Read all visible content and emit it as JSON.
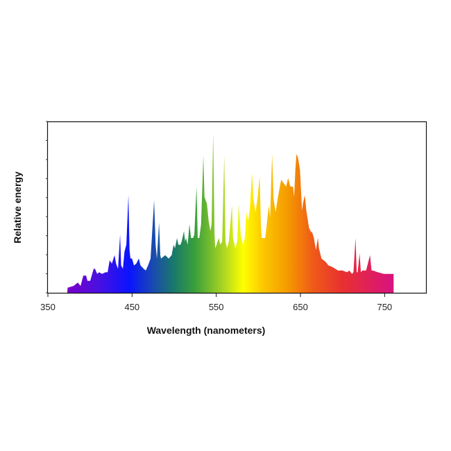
{
  "chart_data": {
    "type": "area",
    "title": "",
    "xlabel": "Wavelength (nanometers)",
    "ylabel": "Relative energy",
    "xlim": [
      350,
      800
    ],
    "ylim": [
      0,
      1
    ],
    "x_ticks": [
      350,
      450,
      550,
      650,
      750
    ],
    "y_tick_count": 10,
    "y_tick_labels": false,
    "grid": false,
    "fill": "visible-spectrum gradient",
    "gradient_stops": [
      {
        "nm": 373,
        "color": "#7a00c8"
      },
      {
        "nm": 410,
        "color": "#4a10e0"
      },
      {
        "nm": 447,
        "color": "#0a14ff"
      },
      {
        "nm": 475,
        "color": "#1a4ab0"
      },
      {
        "nm": 500,
        "color": "#1a7a6a"
      },
      {
        "nm": 525,
        "color": "#3aa03a"
      },
      {
        "nm": 560,
        "color": "#b0d820"
      },
      {
        "nm": 582,
        "color": "#ffff00"
      },
      {
        "nm": 605,
        "color": "#fcc800"
      },
      {
        "nm": 635,
        "color": "#f59a00"
      },
      {
        "nm": 665,
        "color": "#ef5a18"
      },
      {
        "nm": 700,
        "color": "#e83030"
      },
      {
        "nm": 760,
        "color": "#d81280"
      }
    ],
    "points": [
      [
        373,
        0
      ],
      [
        373.5,
        0.03
      ],
      [
        380.5,
        0.04
      ],
      [
        385.5,
        0.06
      ],
      [
        388.8,
        0.04
      ],
      [
        392.1,
        0.1
      ],
      [
        395.4,
        0.1
      ],
      [
        397,
        0.07
      ],
      [
        400.3,
        0.07
      ],
      [
        404.4,
        0.14
      ],
      [
        406,
        0.14
      ],
      [
        408.6,
        0.11
      ],
      [
        411,
        0.12
      ],
      [
        414.3,
        0.11
      ],
      [
        418.5,
        0.12
      ],
      [
        421,
        0.12
      ],
      [
        423.4,
        0.19
      ],
      [
        426,
        0.17
      ],
      [
        429.2,
        0.22
      ],
      [
        431,
        0.17
      ],
      [
        433.3,
        0.14
      ],
      [
        435.8,
        0.34
      ],
      [
        437,
        0.16
      ],
      [
        439.1,
        0.14
      ],
      [
        441,
        0.24
      ],
      [
        443.2,
        0.28
      ],
      [
        445.7,
        0.57
      ],
      [
        447,
        0.25
      ],
      [
        448.1,
        0.2
      ],
      [
        450,
        0.2
      ],
      [
        452.3,
        0.16
      ],
      [
        455,
        0.17
      ],
      [
        458,
        0.2
      ],
      [
        460,
        0.16
      ],
      [
        463.8,
        0.14
      ],
      [
        466.3,
        0.13
      ],
      [
        469,
        0.16
      ],
      [
        472,
        0.2
      ],
      [
        476.2,
        0.54
      ],
      [
        478,
        0.28
      ],
      [
        479.5,
        0.2
      ],
      [
        482,
        0.41
      ],
      [
        483.5,
        0.22
      ],
      [
        484.4,
        0.2
      ],
      [
        487,
        0.21
      ],
      [
        489.4,
        0.22
      ],
      [
        493.5,
        0.2
      ],
      [
        497,
        0.22
      ],
      [
        499.3,
        0.28
      ],
      [
        501,
        0.26
      ],
      [
        503.4,
        0.32
      ],
      [
        505,
        0.28
      ],
      [
        507.5,
        0.28
      ],
      [
        509,
        0.3
      ],
      [
        511.6,
        0.36
      ],
      [
        513,
        0.3
      ],
      [
        514.1,
        0.32
      ],
      [
        516,
        0.28
      ],
      [
        518.2,
        0.4
      ],
      [
        520,
        0.32
      ],
      [
        522.4,
        0.32
      ],
      [
        524,
        0.34
      ],
      [
        526.5,
        0.62
      ],
      [
        528,
        0.32
      ],
      [
        529.8,
        0.32
      ],
      [
        532,
        0.4
      ],
      [
        534.7,
        0.8
      ],
      [
        536,
        0.56
      ],
      [
        538.9,
        0.52
      ],
      [
        541,
        0.42
      ],
      [
        543,
        0.36
      ],
      [
        544.5,
        0.4
      ],
      [
        546.3,
        0.93
      ],
      [
        548,
        0.34
      ],
      [
        548.8,
        0.26
      ],
      [
        550.4,
        0.28
      ],
      [
        552.9,
        0.32
      ],
      [
        555,
        0.28
      ],
      [
        557,
        0.3
      ],
      [
        559.5,
        0.8
      ],
      [
        561,
        0.3
      ],
      [
        562.8,
        0.26
      ],
      [
        565,
        0.3
      ],
      [
        568.6,
        0.51
      ],
      [
        570,
        0.32
      ],
      [
        572.7,
        0.26
      ],
      [
        575,
        0.3
      ],
      [
        576.8,
        0.52
      ],
      [
        579,
        0.34
      ],
      [
        581.8,
        0.28
      ],
      [
        584,
        0.32
      ],
      [
        585.9,
        0.47
      ],
      [
        588,
        0.42
      ],
      [
        590,
        0.5
      ],
      [
        592.5,
        0.7
      ],
      [
        594,
        0.55
      ],
      [
        596.6,
        0.47
      ],
      [
        599,
        0.55
      ],
      [
        601.5,
        0.68
      ],
      [
        603,
        0.4
      ],
      [
        604,
        0.32
      ],
      [
        606,
        0.32
      ],
      [
        608.1,
        0.32
      ],
      [
        610,
        0.4
      ],
      [
        612.3,
        0.51
      ],
      [
        614,
        0.44
      ],
      [
        616.4,
        0.81
      ],
      [
        618,
        0.55
      ],
      [
        620.5,
        0.47
      ],
      [
        623,
        0.55
      ],
      [
        627.1,
        0.66
      ],
      [
        630,
        0.64
      ],
      [
        633,
        0.62
      ],
      [
        635.4,
        0.67
      ],
      [
        638,
        0.62
      ],
      [
        641.1,
        0.62
      ],
      [
        642.5,
        0.56
      ],
      [
        644,
        0.72
      ],
      [
        645.3,
        0.81
      ],
      [
        647,
        0.79
      ],
      [
        649.4,
        0.72
      ],
      [
        651.9,
        0.48
      ],
      [
        653,
        0.52
      ],
      [
        655.2,
        0.57
      ],
      [
        657,
        0.48
      ],
      [
        660.1,
        0.38
      ],
      [
        662,
        0.36
      ],
      [
        664.2,
        0.35
      ],
      [
        666,
        0.32
      ],
      [
        668.4,
        0.25
      ],
      [
        670.8,
        0.32
      ],
      [
        672,
        0.26
      ],
      [
        675,
        0.2
      ],
      [
        680,
        0.18
      ],
      [
        683.2,
        0.16
      ],
      [
        688,
        0.15
      ],
      [
        694.7,
        0.13
      ],
      [
        700,
        0.13
      ],
      [
        705.5,
        0.12
      ],
      [
        708,
        0.13
      ],
      [
        711.2,
        0.11
      ],
      [
        713,
        0.12
      ],
      [
        715.4,
        0.32
      ],
      [
        716.8,
        0.12
      ],
      [
        718,
        0.12
      ],
      [
        720.3,
        0.23
      ],
      [
        721.8,
        0.12
      ],
      [
        723.6,
        0.13
      ],
      [
        728,
        0.13
      ],
      [
        732.7,
        0.22
      ],
      [
        734.5,
        0.13
      ],
      [
        736,
        0.13
      ],
      [
        742,
        0.12
      ],
      [
        749.2,
        0.11
      ],
      [
        755,
        0.11
      ],
      [
        760.7,
        0.11
      ],
      [
        760.7,
        0
      ]
    ]
  }
}
